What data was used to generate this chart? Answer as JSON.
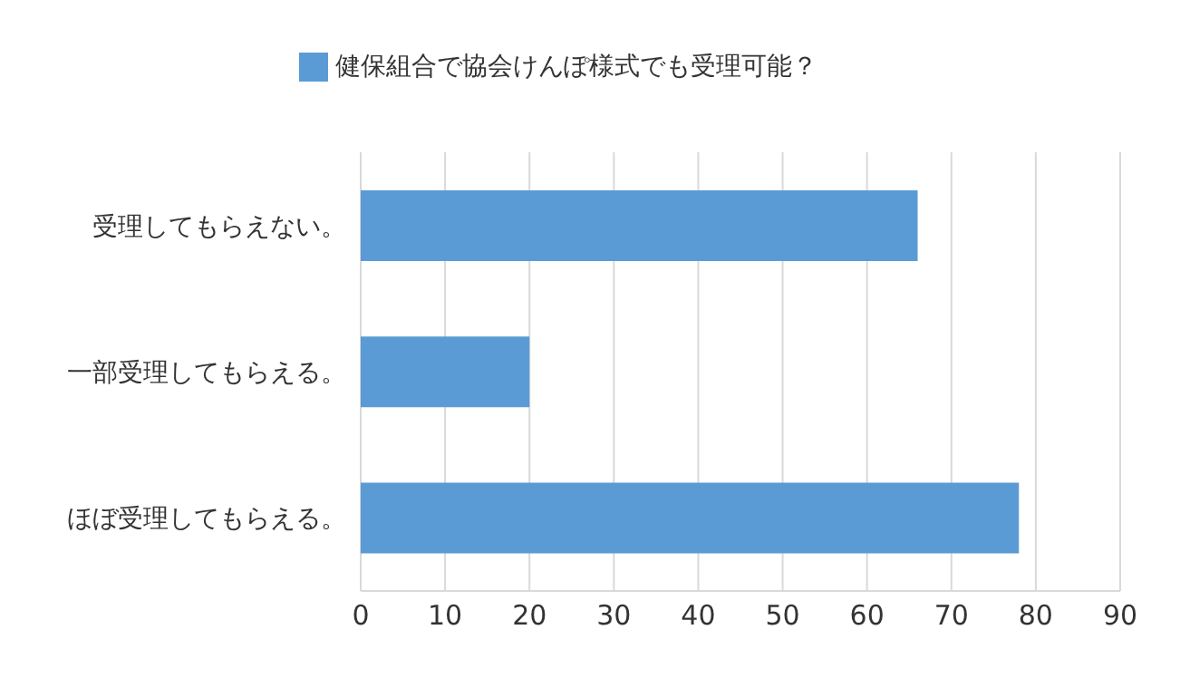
{
  "chart_data": {
    "type": "bar",
    "orientation": "horizontal",
    "categories": [
      "受理してもらえない。",
      "一部受理してもらえる。",
      "ほぼ受理してもらえる。"
    ],
    "series": [
      {
        "name": "健保組合で協会けんぽ様式でも受理可能？",
        "color": "#5b9bd5",
        "values": [
          66,
          20,
          78
        ]
      }
    ],
    "xlim": [
      0,
      90
    ],
    "xticks": [
      0,
      10,
      20,
      30,
      40,
      50,
      60,
      70,
      80,
      90
    ],
    "grid": "x",
    "legend": "top"
  }
}
